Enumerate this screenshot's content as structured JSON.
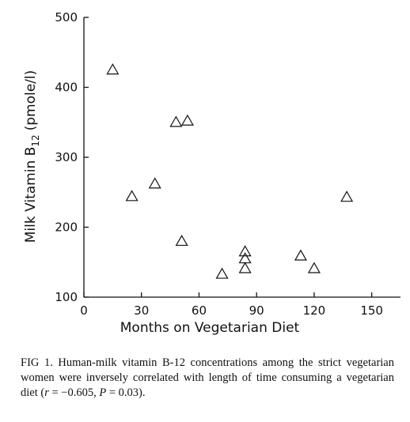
{
  "chart_data": {
    "type": "scatter",
    "xlabel": "Months on Vegetarian Diet",
    "ylabel_main": "Milk Vitamin B",
    "ylabel_sub": "12",
    "ylabel_unit": "(pmole/l)",
    "xlim": [
      0,
      165
    ],
    "ylim": [
      100,
      500
    ],
    "xticks": [
      0,
      30,
      60,
      90,
      120,
      150
    ],
    "yticks": [
      100,
      200,
      300,
      400,
      500
    ],
    "marker": "open-triangle",
    "points": [
      {
        "x": 15,
        "y": 425
      },
      {
        "x": 25,
        "y": 244
      },
      {
        "x": 37,
        "y": 262
      },
      {
        "x": 48,
        "y": 350
      },
      {
        "x": 51,
        "y": 180
      },
      {
        "x": 54,
        "y": 352
      },
      {
        "x": 72,
        "y": 133
      },
      {
        "x": 84,
        "y": 165
      },
      {
        "x": 84,
        "y": 155
      },
      {
        "x": 84,
        "y": 141
      },
      {
        "x": 113,
        "y": 159
      },
      {
        "x": 120,
        "y": 141
      },
      {
        "x": 137,
        "y": 243
      }
    ]
  },
  "caption": {
    "lead": "FIG 1.",
    "text_1": " Human-milk vitamin B-12 concentrations among the strict vegetarian women were inversely correlated with length of time consuming a vegetarian diet (",
    "r_symbol": "r",
    "text_2": " = −0.605, ",
    "p_symbol": "P",
    "text_3": " = 0.03)."
  }
}
